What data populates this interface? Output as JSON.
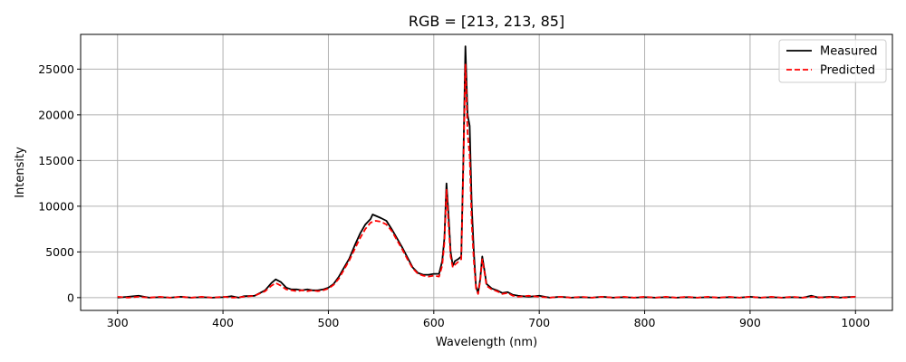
{
  "chart_data": {
    "type": "line",
    "title": "RGB = [213, 213, 85]",
    "xlabel": "Wavelength (nm)",
    "ylabel": "Intensity",
    "xlim": [
      265,
      1035
    ],
    "ylim": [
      -1400,
      28800
    ],
    "xticks": [
      300,
      400,
      500,
      600,
      700,
      800,
      900,
      1000
    ],
    "yticks": [
      0,
      5000,
      10000,
      15000,
      20000,
      25000
    ],
    "grid": true,
    "legend_position": "top-right",
    "series": [
      {
        "name": "Measured",
        "color": "#000000",
        "dash": "solid",
        "points": [
          [
            300,
            0
          ],
          [
            310,
            100
          ],
          [
            320,
            200
          ],
          [
            330,
            0
          ],
          [
            340,
            50
          ],
          [
            350,
            0
          ],
          [
            360,
            100
          ],
          [
            370,
            0
          ],
          [
            380,
            50
          ],
          [
            390,
            0
          ],
          [
            400,
            50
          ],
          [
            408,
            150
          ],
          [
            415,
            0
          ],
          [
            420,
            150
          ],
          [
            430,
            200
          ],
          [
            440,
            800
          ],
          [
            446,
            1600
          ],
          [
            450,
            2000
          ],
          [
            455,
            1700
          ],
          [
            460,
            1100
          ],
          [
            465,
            900
          ],
          [
            470,
            900
          ],
          [
            475,
            800
          ],
          [
            480,
            900
          ],
          [
            485,
            800
          ],
          [
            490,
            800
          ],
          [
            495,
            900
          ],
          [
            500,
            1100
          ],
          [
            505,
            1500
          ],
          [
            510,
            2300
          ],
          [
            515,
            3300
          ],
          [
            520,
            4300
          ],
          [
            525,
            5700
          ],
          [
            530,
            7000
          ],
          [
            535,
            8000
          ],
          [
            540,
            8600
          ],
          [
            542,
            9100
          ],
          [
            546,
            8900
          ],
          [
            550,
            8700
          ],
          [
            555,
            8400
          ],
          [
            560,
            7500
          ],
          [
            565,
            6500
          ],
          [
            570,
            5500
          ],
          [
            575,
            4400
          ],
          [
            580,
            3300
          ],
          [
            585,
            2700
          ],
          [
            590,
            2500
          ],
          [
            595,
            2500
          ],
          [
            600,
            2600
          ],
          [
            605,
            2600
          ],
          [
            608,
            4000
          ],
          [
            610,
            6500
          ],
          [
            612,
            12500
          ],
          [
            614,
            9000
          ],
          [
            616,
            5000
          ],
          [
            618,
            3500
          ],
          [
            620,
            4000
          ],
          [
            623,
            4200
          ],
          [
            626,
            4500
          ],
          [
            628,
            15000
          ],
          [
            630,
            27500
          ],
          [
            632,
            20000
          ],
          [
            634,
            18800
          ],
          [
            636,
            10000
          ],
          [
            638,
            5000
          ],
          [
            640,
            1200
          ],
          [
            642,
            500
          ],
          [
            644,
            2000
          ],
          [
            646,
            4500
          ],
          [
            648,
            3000
          ],
          [
            650,
            1500
          ],
          [
            655,
            1000
          ],
          [
            660,
            800
          ],
          [
            665,
            500
          ],
          [
            670,
            600
          ],
          [
            675,
            300
          ],
          [
            680,
            200
          ],
          [
            690,
            100
          ],
          [
            700,
            200
          ],
          [
            710,
            0
          ],
          [
            720,
            100
          ],
          [
            730,
            0
          ],
          [
            740,
            50
          ],
          [
            750,
            0
          ],
          [
            760,
            100
          ],
          [
            770,
            0
          ],
          [
            780,
            50
          ],
          [
            790,
            0
          ],
          [
            800,
            50
          ],
          [
            810,
            0
          ],
          [
            820,
            50
          ],
          [
            830,
            0
          ],
          [
            840,
            50
          ],
          [
            850,
            0
          ],
          [
            860,
            50
          ],
          [
            870,
            0
          ],
          [
            880,
            50
          ],
          [
            890,
            0
          ],
          [
            900,
            100
          ],
          [
            910,
            0
          ],
          [
            920,
            50
          ],
          [
            930,
            0
          ],
          [
            940,
            50
          ],
          [
            950,
            0
          ],
          [
            958,
            200
          ],
          [
            965,
            0
          ],
          [
            975,
            100
          ],
          [
            985,
            0
          ],
          [
            990,
            50
          ],
          [
            1000,
            100
          ]
        ]
      },
      {
        "name": "Predicted",
        "color": "#ff0000",
        "dash": "dashed",
        "points": [
          [
            300,
            100
          ],
          [
            310,
            0
          ],
          [
            320,
            100
          ],
          [
            330,
            0
          ],
          [
            340,
            100
          ],
          [
            350,
            0
          ],
          [
            360,
            100
          ],
          [
            370,
            0
          ],
          [
            380,
            100
          ],
          [
            390,
            0
          ],
          [
            400,
            100
          ],
          [
            410,
            0
          ],
          [
            420,
            100
          ],
          [
            430,
            200
          ],
          [
            440,
            700
          ],
          [
            446,
            1300
          ],
          [
            450,
            1600
          ],
          [
            455,
            1300
          ],
          [
            460,
            900
          ],
          [
            465,
            800
          ],
          [
            470,
            700
          ],
          [
            475,
            800
          ],
          [
            480,
            700
          ],
          [
            485,
            800
          ],
          [
            490,
            700
          ],
          [
            495,
            800
          ],
          [
            500,
            1000
          ],
          [
            505,
            1400
          ],
          [
            510,
            2100
          ],
          [
            515,
            3100
          ],
          [
            520,
            4100
          ],
          [
            525,
            5300
          ],
          [
            530,
            6500
          ],
          [
            535,
            7500
          ],
          [
            540,
            8200
          ],
          [
            545,
            8400
          ],
          [
            550,
            8300
          ],
          [
            555,
            8000
          ],
          [
            560,
            7300
          ],
          [
            565,
            6300
          ],
          [
            570,
            5300
          ],
          [
            575,
            4200
          ],
          [
            580,
            3200
          ],
          [
            585,
            2600
          ],
          [
            590,
            2400
          ],
          [
            595,
            2300
          ],
          [
            600,
            2400
          ],
          [
            605,
            2300
          ],
          [
            608,
            3500
          ],
          [
            610,
            6000
          ],
          [
            612,
            11800
          ],
          [
            614,
            8000
          ],
          [
            616,
            4500
          ],
          [
            618,
            3300
          ],
          [
            620,
            3600
          ],
          [
            623,
            3900
          ],
          [
            626,
            4200
          ],
          [
            628,
            14000
          ],
          [
            630,
            25500
          ],
          [
            632,
            18000
          ],
          [
            634,
            15500
          ],
          [
            636,
            8000
          ],
          [
            638,
            4000
          ],
          [
            640,
            1000
          ],
          [
            642,
            400
          ],
          [
            644,
            1800
          ],
          [
            646,
            4200
          ],
          [
            648,
            2800
          ],
          [
            650,
            1300
          ],
          [
            655,
            900
          ],
          [
            660,
            700
          ],
          [
            665,
            400
          ],
          [
            670,
            500
          ],
          [
            675,
            200
          ],
          [
            680,
            100
          ],
          [
            690,
            200
          ],
          [
            700,
            100
          ],
          [
            710,
            0
          ],
          [
            720,
            100
          ],
          [
            730,
            0
          ],
          [
            740,
            100
          ],
          [
            750,
            0
          ],
          [
            760,
            100
          ],
          [
            770,
            0
          ],
          [
            780,
            100
          ],
          [
            790,
            0
          ],
          [
            800,
            100
          ],
          [
            810,
            0
          ],
          [
            820,
            100
          ],
          [
            830,
            0
          ],
          [
            840,
            100
          ],
          [
            850,
            0
          ],
          [
            860,
            100
          ],
          [
            870,
            0
          ],
          [
            880,
            100
          ],
          [
            890,
            0
          ],
          [
            900,
            100
          ],
          [
            910,
            0
          ],
          [
            920,
            100
          ],
          [
            930,
            0
          ],
          [
            940,
            100
          ],
          [
            950,
            0
          ],
          [
            960,
            100
          ],
          [
            970,
            0
          ],
          [
            980,
            100
          ],
          [
            990,
            0
          ],
          [
            1000,
            100
          ]
        ]
      }
    ]
  }
}
